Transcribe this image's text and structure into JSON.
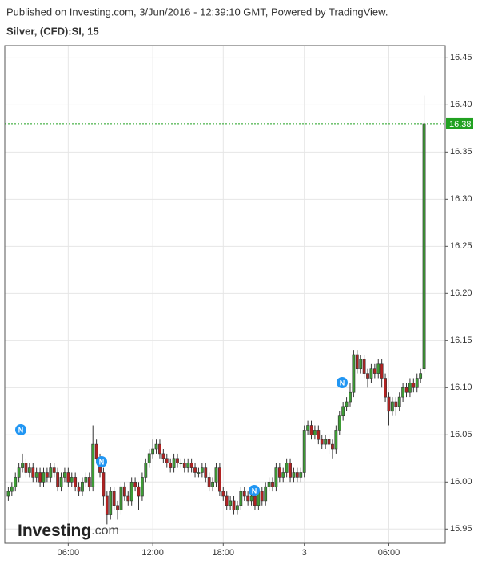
{
  "header": {
    "published": "Published on Investing.com, 3/Jun/2016 - 12:39:10 GMT, Powered by TradingView.",
    "symbol": "Silver, (CFD):SI, 15"
  },
  "watermark": {
    "brand": "Investing",
    "suffix": ".com"
  },
  "news_label": "N",
  "chart_data": {
    "type": "candlestick",
    "open": [
      15.985,
      15.99,
      15.995,
      16.005,
      16.015,
      16.02,
      16.01,
      16.015,
      16.005,
      16.01,
      16,
      16.01,
      16.005,
      16.015,
      16.01,
      15.995,
      16.005,
      16.01,
      16,
      16.005,
      15.995,
      15.99,
      16,
      16.005,
      15.995,
      16.04,
      16.025,
      16.01,
      15.985,
      15.965,
      15.99,
      15.975,
      15.97,
      15.995,
      15.985,
      15.98,
      16,
      15.995,
      15.985,
      16.005,
      16.02,
      16.03,
      16.035,
      16.04,
      16.03,
      16.025,
      16.02,
      16.015,
      16.025,
      16.02,
      16.02,
      16.015,
      16.02,
      16.015,
      16.01,
      16.01,
      16.015,
      16.005,
      15.995,
      16,
      16.015,
      15.99,
      15.985,
      15.975,
      15.98,
      15.97,
      15.975,
      15.99,
      15.985,
      15.98,
      15.985,
      15.975,
      15.99,
      15.98,
      15.995,
      16,
      15.995,
      16.015,
      16.005,
      16.01,
      16.02,
      16.005,
      16.01,
      16.005,
      16.01,
      16.055,
      16.06,
      16.05,
      16.055,
      16.045,
      16.04,
      16.045,
      16.04,
      16.035,
      16.055,
      16.07,
      16.08,
      16.085,
      16.095,
      16.135,
      16.12,
      16.13,
      16.115,
      16.11,
      16.12,
      16.115,
      16.125,
      16.11,
      16.09,
      16.075,
      16.085,
      16.08,
      16.09,
      16.1,
      16.095,
      16.105,
      16.1,
      16.11,
      16.12
    ],
    "high": [
      15.995,
      16,
      16.01,
      16.02,
      16.03,
      16.025,
      16.02,
      16.02,
      16.015,
      16.015,
      16.015,
      16.015,
      16.02,
      16.02,
      16.015,
      16.01,
      16.015,
      16.015,
      16.01,
      16.01,
      16,
      16.005,
      16.01,
      16.01,
      16.06,
      16.045,
      16.03,
      16.015,
      15.99,
      15.995,
      15.995,
      15.98,
      16,
      16,
      15.99,
      16.005,
      16.005,
      16,
      16.01,
      16.025,
      16.035,
      16.045,
      16.045,
      16.045,
      16.035,
      16.03,
      16.025,
      16.03,
      16.03,
      16.025,
      16.025,
      16.025,
      16.025,
      16.02,
      16.015,
      16.02,
      16.02,
      16.01,
      16.005,
      16.02,
      16.02,
      15.995,
      15.99,
      15.985,
      15.985,
      15.98,
      15.995,
      15.995,
      15.99,
      15.99,
      15.99,
      15.995,
      15.995,
      16,
      16.005,
      16.005,
      16.02,
      16.02,
      16.015,
      16.025,
      16.025,
      16.015,
      16.015,
      16.015,
      16.06,
      16.065,
      16.065,
      16.06,
      16.06,
      16.05,
      16.05,
      16.05,
      16.045,
      16.06,
      16.075,
      16.085,
      16.09,
      16.105,
      16.14,
      16.14,
      16.135,
      16.135,
      16.12,
      16.125,
      16.125,
      16.13,
      16.13,
      16.115,
      16.095,
      16.09,
      16.09,
      16.095,
      16.105,
      16.105,
      16.11,
      16.11,
      16.115,
      16.12,
      16.41
    ],
    "low": [
      15.98,
      15.985,
      15.99,
      16,
      16.01,
      16.005,
      16.005,
      16,
      16,
      15.995,
      15.995,
      16,
      16,
      16.005,
      15.99,
      15.99,
      16,
      15.995,
      15.995,
      15.99,
      15.985,
      15.985,
      15.995,
      15.99,
      15.99,
      16.02,
      16.005,
      15.975,
      15.955,
      15.96,
      15.97,
      15.96,
      15.965,
      15.98,
      15.975,
      15.975,
      15.99,
      15.97,
      15.98,
      16,
      16.015,
      16.025,
      16.03,
      16.025,
      16.02,
      16.015,
      16.01,
      16.01,
      16.015,
      16.015,
      16.01,
      16.01,
      16.01,
      16.005,
      16.005,
      16.005,
      16,
      15.99,
      15.99,
      15.995,
      15.985,
      15.98,
      15.97,
      15.97,
      15.965,
      15.965,
      15.97,
      15.98,
      15.975,
      15.975,
      15.97,
      15.97,
      15.975,
      15.975,
      15.99,
      15.99,
      15.99,
      16,
      16,
      16.005,
      16,
      16,
      16,
      16,
      16.005,
      16.05,
      16.045,
      16.045,
      16.04,
      16.035,
      16.035,
      16.03,
      16.025,
      16.03,
      16.05,
      16.065,
      16.075,
      16.08,
      16.09,
      16.115,
      16.115,
      16.11,
      16.1,
      16.105,
      16.11,
      16.11,
      16.1,
      16.085,
      16.06,
      16.07,
      16.07,
      16.075,
      16.085,
      16.09,
      16.09,
      16.095,
      16.095,
      16.105,
      16.115
    ],
    "close": [
      15.99,
      15.995,
      16.005,
      16.015,
      16.02,
      16.01,
      16.015,
      16.005,
      16.01,
      16,
      16.01,
      16.005,
      16.015,
      16.01,
      15.995,
      16.005,
      16.01,
      16,
      16.005,
      15.995,
      15.99,
      16,
      16.005,
      15.995,
      16.04,
      16.025,
      16.01,
      15.985,
      15.965,
      15.99,
      15.975,
      15.97,
      15.995,
      15.985,
      15.98,
      16,
      15.995,
      15.985,
      16.005,
      16.02,
      16.03,
      16.035,
      16.04,
      16.03,
      16.025,
      16.02,
      16.015,
      16.025,
      16.02,
      16.02,
      16.015,
      16.02,
      16.015,
      16.01,
      16.01,
      16.015,
      16.005,
      15.995,
      16,
      16.015,
      15.99,
      15.985,
      15.975,
      15.98,
      15.97,
      15.975,
      15.99,
      15.985,
      15.98,
      15.985,
      15.975,
      15.99,
      15.98,
      15.995,
      16,
      15.995,
      16.015,
      16.005,
      16.01,
      16.02,
      16.005,
      16.01,
      16.005,
      16.01,
      16.055,
      16.06,
      16.05,
      16.055,
      16.045,
      16.04,
      16.045,
      16.04,
      16.035,
      16.055,
      16.07,
      16.08,
      16.085,
      16.095,
      16.135,
      16.12,
      16.13,
      16.115,
      16.11,
      16.12,
      16.115,
      16.125,
      16.11,
      16.09,
      16.075,
      16.085,
      16.08,
      16.09,
      16.1,
      16.095,
      16.105,
      16.1,
      16.11,
      16.115,
      16.38
    ],
    "up_color": "#3d9b35",
    "down_color": "#b22222",
    "last_price": 16.38,
    "last_color": "#21a121",
    "xlim": [
      -1,
      124
    ],
    "xticks": [
      {
        "value": 17,
        "label": "06:00"
      },
      {
        "value": 41,
        "label": "12:00"
      },
      {
        "value": 61,
        "label": "18:00"
      },
      {
        "value": 84,
        "label": "3"
      },
      {
        "value": 108,
        "label": "06:00"
      }
    ],
    "ylim": [
      15.935,
      16.463
    ],
    "yticks": [
      15.95,
      {
        "value": 16,
        "label": "16.00"
      },
      16.05,
      {
        "value": 16.1,
        "label": "16.10"
      },
      16.15,
      {
        "value": 16.2,
        "label": "16.20"
      },
      16.25,
      {
        "value": 16.3,
        "label": "16.30"
      },
      16.35,
      {
        "value": 16.4,
        "label": "16.40"
      },
      16.45
    ],
    "grid": true
  }
}
